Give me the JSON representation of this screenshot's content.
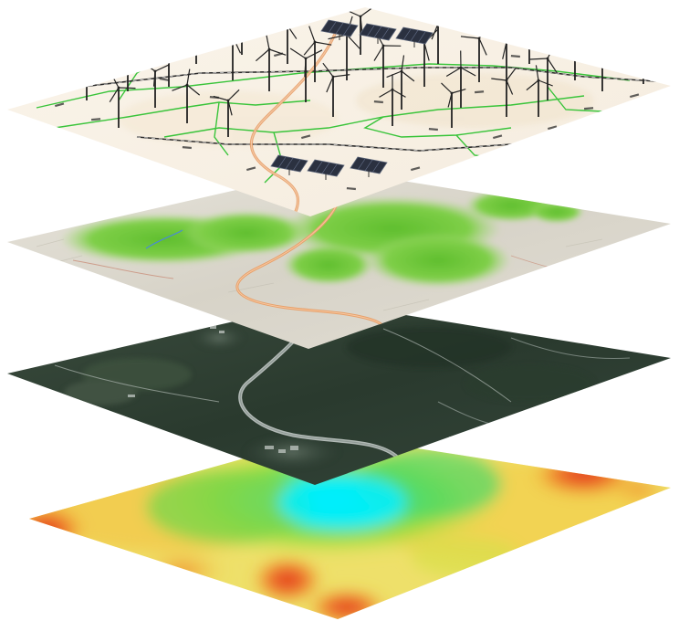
{
  "figure": {
    "layers": [
      {
        "id": "infrastructure",
        "kind": "vector-map-with-turbines-and-solar",
        "turbine_count": 36,
        "solar_panel_count": 6
      },
      {
        "id": "land-cover",
        "kind": "vegetation-shaded-relief"
      },
      {
        "id": "imagery",
        "kind": "satellite-orthophoto"
      },
      {
        "id": "suitability",
        "kind": "heatmap-surface"
      }
    ],
    "colors": {
      "road": "#e7a06a",
      "green_line": "#39c43a",
      "turbine": "#222222",
      "forest": "#6cc43a",
      "relief": "#d8d5cb",
      "imagery": "#2e3f33",
      "heat_low": "#00e5ff",
      "heat_mid": "#8fdc3c",
      "heat_high": "#e23b22"
    }
  }
}
